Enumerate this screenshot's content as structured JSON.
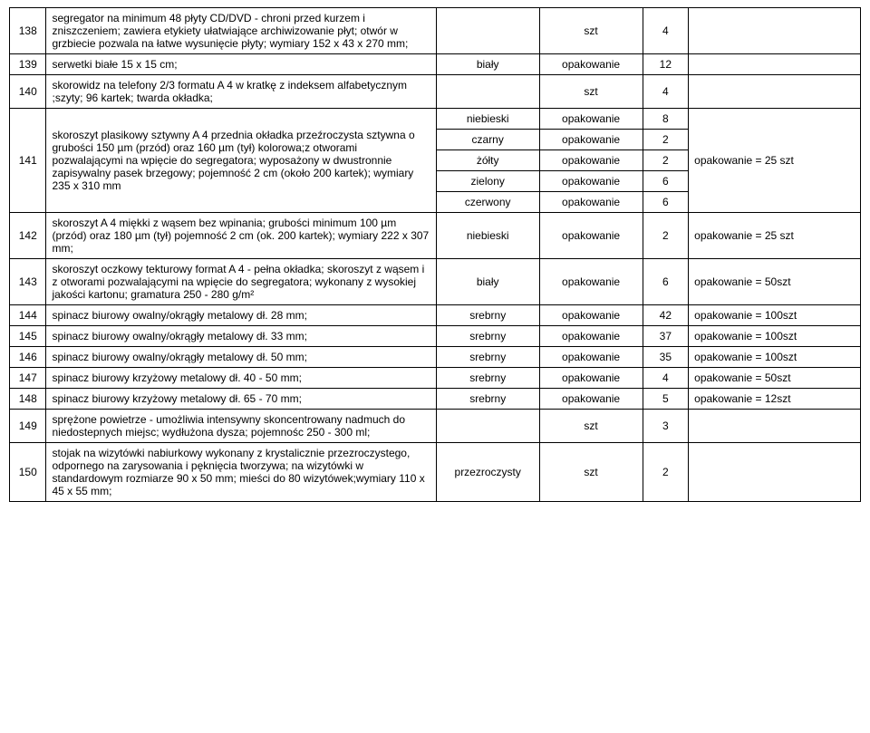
{
  "table": {
    "col_widths": {
      "num": 32,
      "desc": 340,
      "col3": 90,
      "col4": 90,
      "col5": 40,
      "col6": 150
    },
    "rows": [
      {
        "num": "138",
        "desc": "segregator na minimum 48 płyty CD/DVD - chroni przed kurzem i zniszczeniem;  zawiera etykiety ułatwiające archiwizowanie płyt; otwór w grzbiecie pozwala na łatwe wysunięcie płyty; wymiary 152 x 43 x 270 mm;",
        "col3": "",
        "col4": "szt",
        "col5": "4",
        "col6": ""
      },
      {
        "num": "139",
        "desc": "serwetki białe 15 x 15 cm;",
        "col3": "biały",
        "col4": "opakowanie",
        "col5": "12",
        "col6": ""
      },
      {
        "num": "140",
        "desc": "skorowidz na telefony 2/3 formatu A 4 w kratkę z indeksem alfabetycznym ;szyty;  96 kartek; twarda okładka;",
        "col3": "",
        "col4": "szt",
        "col5": "4",
        "col6": ""
      },
      {
        "num": "141",
        "desc": "skoroszyt plasikowy sztywny A 4 przednia okładka przeźroczysta sztywna o grubości 150 µm (przód) oraz 160 µm (tył) kolorowa;z otworami pozwalającymi na wpięcie do segregatora;  wyposażony w dwustronnie zapisywalny pasek brzegowy; pojemność 2 cm (około 200 kartek); wymiary 235 x 310 mm",
        "sub": [
          {
            "col3": "niebieski",
            "col4": "opakowanie",
            "col5": "8"
          },
          {
            "col3": "czarny",
            "col4": "opakowanie",
            "col5": "2"
          },
          {
            "col3": "żółty",
            "col4": "opakowanie",
            "col5": "2"
          },
          {
            "col3": "zielony",
            "col4": "opakowanie",
            "col5": "6"
          },
          {
            "col3": "czerwony",
            "col4": "opakowanie",
            "col5": "6"
          }
        ],
        "col6": "opakowanie = 25 szt"
      },
      {
        "num": "142",
        "desc": "skoroszyt A 4 miękki z wąsem bez wpinania; grubości minimum 100 µm (przód) oraz 180 µm (tył) pojemność 2 cm (ok. 200 kartek); wymiary 222 x 307 mm;",
        "col3": "niebieski",
        "col4": "opakowanie",
        "col5": "2",
        "col6": "opakowanie = 25 szt"
      },
      {
        "num": "143",
        "desc": "skoroszyt oczkowy tekturowy format A 4 - pełna okładka; skoroszyt z wąsem i z otworami pozwalającymi na wpięcie do segregatora; wykonany z wysokiej jakości kartonu; gramatura 250 - 280 g/m²",
        "col3": "biały",
        "col4": "opakowanie",
        "col5": "6",
        "col6": "opakowanie =  50szt"
      },
      {
        "num": "144",
        "desc": "spinacz biurowy owalny/okrągły metalowy dł. 28 mm;",
        "col3": "srebrny",
        "col4": "opakowanie",
        "col5": "42",
        "col6": "opakowanie = 100szt"
      },
      {
        "num": "145",
        "desc": "spinacz biurowy owalny/okrągły metalowy dł. 33 mm;",
        "col3": "srebrny",
        "col4": "opakowanie",
        "col5": "37",
        "col6": "opakowanie = 100szt"
      },
      {
        "num": "146",
        "desc": "spinacz biurowy owalny/okrągły metalowy dł. 50 mm;",
        "col3": "srebrny",
        "col4": "opakowanie",
        "col5": "35",
        "col6": "opakowanie = 100szt"
      },
      {
        "num": "147",
        "desc": "spinacz biurowy krzyżowy metalowy dł. 40 - 50 mm;",
        "col3": "srebrny",
        "col4": "opakowanie",
        "col5": "4",
        "col6": "opakowanie = 50szt"
      },
      {
        "num": "148",
        "desc": "spinacz biurowy krzyżowy metalowy dł. 65 - 70 mm;",
        "col3": "srebrny",
        "col4": "opakowanie",
        "col5": "5",
        "col6": "opakowanie = 12szt"
      },
      {
        "num": "149",
        "desc": "sprężone powietrze - umożliwia intensywny skoncentrowany nadmuch do niedostepnych miejsc; wydłużona dysza; pojemnośc 250 - 300 ml;",
        "col3": "",
        "col4": "szt",
        "col5": "3",
        "col6": ""
      },
      {
        "num": "150",
        "desc": "stojak na wizytówki nabiurkowy wykonany z krystalicznie przezroczystego, odpornego na zarysowania i pęknięcia tworzywa; na wizytówki w standardowym rozmiarze 90 x 50 mm; mieści do 80 wizytówek;wymiary 110 x 45 x 55 mm;",
        "col3": "przezroczysty",
        "col4": "szt",
        "col5": "2",
        "col6": ""
      }
    ]
  }
}
